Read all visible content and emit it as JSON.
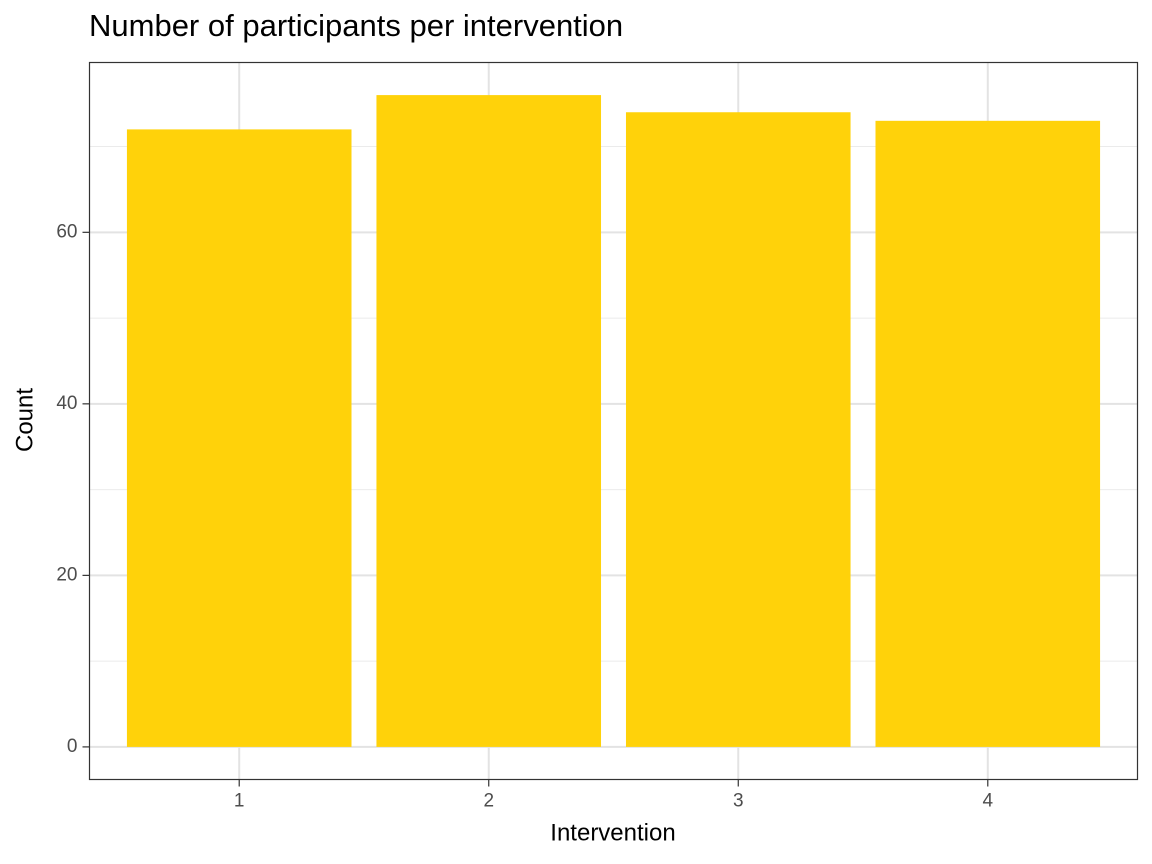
{
  "chart_data": {
    "type": "bar",
    "title": "Number of participants per intervention",
    "x_label": "Intervention",
    "y_label": "Count",
    "categories": [
      "1",
      "2",
      "3",
      "4"
    ],
    "values": [
      72,
      76,
      74,
      73
    ],
    "color": "#ffd20a",
    "ylim": [
      -3.8,
      79.8
    ],
    "yticks": [
      0,
      20,
      40,
      60
    ],
    "y_minor_grid": [
      10,
      30,
      50,
      70
    ],
    "grid": true
  }
}
